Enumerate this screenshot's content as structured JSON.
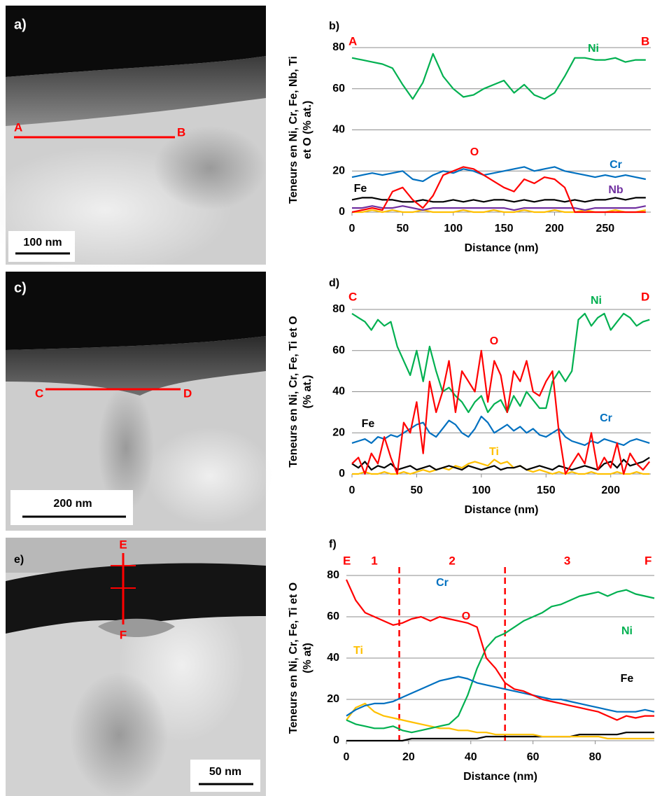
{
  "images": [
    {
      "panel": "a)",
      "start": "A",
      "end": "B",
      "scale_bar": "100 nm"
    },
    {
      "panel": "c)",
      "start": "C",
      "end": "D",
      "scale_bar": "200 nm"
    },
    {
      "panel": "e)",
      "start": "E",
      "end": "F",
      "scale_bar": "50 nm"
    }
  ],
  "chart_data": [
    {
      "type": "line",
      "panel": "b)",
      "corner_labels": [
        "A",
        "B"
      ],
      "ylabel": [
        "Teneurs en Ni, Cr, Fe, Nb, Ti",
        "et O (% at.)"
      ],
      "xlabel": "Distance (nm)",
      "xlim": [
        0,
        295
      ],
      "xticks": [
        0,
        50,
        100,
        150,
        200,
        250
      ],
      "ylim": [
        0,
        80
      ],
      "yticks": [
        0,
        20,
        40,
        60,
        80
      ],
      "grid": true,
      "x": [
        0,
        10,
        20,
        30,
        40,
        50,
        60,
        70,
        80,
        90,
        100,
        110,
        120,
        130,
        140,
        150,
        160,
        170,
        180,
        190,
        200,
        210,
        220,
        230,
        240,
        250,
        260,
        270,
        280,
        290
      ],
      "series": [
        {
          "color": "#ffc000",
          "values": [
            0,
            0,
            1,
            0,
            1,
            0,
            0,
            1,
            0,
            0,
            0,
            1,
            0,
            0,
            1,
            0,
            0,
            1,
            0,
            0,
            1,
            0,
            0,
            1,
            0,
            0,
            1,
            0,
            0,
            1
          ]
        },
        {
          "name": "Nb",
          "color": "#7030a0",
          "values": [
            2,
            2,
            3,
            2,
            2,
            3,
            2,
            1,
            2,
            2,
            2,
            2,
            2,
            2,
            2,
            2,
            1,
            2,
            2,
            2,
            2,
            2,
            2,
            1,
            2,
            2,
            2,
            2,
            2,
            3
          ]
        },
        {
          "name": "Fe",
          "color": "#000000",
          "values": [
            6,
            7,
            7,
            6,
            6,
            5,
            5,
            6,
            5,
            5,
            6,
            5,
            6,
            5,
            6,
            6,
            5,
            6,
            5,
            6,
            6,
            5,
            6,
            5,
            6,
            6,
            7,
            6,
            7,
            7
          ]
        },
        {
          "name": "Cr",
          "color": "#0070c0",
          "values": [
            17,
            18,
            19,
            18,
            19,
            20,
            16,
            15,
            18,
            20,
            19,
            21,
            20,
            18,
            19,
            20,
            21,
            22,
            20,
            21,
            22,
            20,
            19,
            18,
            17,
            18,
            17,
            18,
            17,
            16
          ]
        },
        {
          "name": "Ni",
          "color": "#00b050",
          "values": [
            75,
            74,
            73,
            72,
            70,
            62,
            55,
            63,
            77,
            66,
            60,
            56,
            57,
            60,
            62,
            64,
            58,
            62,
            57,
            55,
            58,
            66,
            75,
            75,
            74,
            74,
            75,
            73,
            74,
            74
          ]
        },
        {
          "name": "O",
          "color": "#ff0000",
          "values": [
            0,
            1,
            2,
            1,
            10,
            12,
            6,
            2,
            8,
            18,
            20,
            22,
            21,
            18,
            15,
            12,
            10,
            16,
            14,
            17,
            16,
            12,
            0,
            0,
            0,
            0,
            0,
            0,
            0,
            0
          ]
        }
      ]
    },
    {
      "type": "line",
      "panel": "d)",
      "corner_labels": [
        "C",
        "D"
      ],
      "ylabel": [
        "Teneurs en Ni, Cr, Fe, Ti et O",
        "(% at.)"
      ],
      "xlabel": "Distance (nm)",
      "xlim": [
        0,
        231
      ],
      "xticks": [
        0,
        50,
        100,
        150,
        200
      ],
      "ylim": [
        0,
        80
      ],
      "yticks": [
        0,
        20,
        40,
        60,
        80
      ],
      "grid": true,
      "x": [
        0,
        5,
        10,
        15,
        20,
        25,
        30,
        35,
        40,
        45,
        50,
        55,
        60,
        65,
        70,
        75,
        80,
        85,
        90,
        95,
        100,
        105,
        110,
        115,
        120,
        125,
        130,
        135,
        140,
        145,
        150,
        155,
        160,
        165,
        170,
        175,
        180,
        185,
        190,
        195,
        200,
        205,
        210,
        215,
        220,
        225,
        230
      ],
      "series": [
        {
          "name": "Ti",
          "color": "#ffc000",
          "values": [
            0,
            0,
            1,
            0,
            0,
            1,
            0,
            0,
            1,
            0,
            1,
            2,
            1,
            2,
            3,
            2,
            4,
            3,
            5,
            6,
            5,
            4,
            7,
            5,
            6,
            3,
            4,
            2,
            1,
            2,
            1,
            0,
            1,
            0,
            1,
            0,
            0,
            1,
            0,
            0,
            0,
            1,
            0,
            0,
            1,
            0,
            0
          ]
        },
        {
          "name": "Fe",
          "color": "#000000",
          "values": [
            5,
            3,
            6,
            2,
            4,
            3,
            5,
            2,
            3,
            4,
            2,
            3,
            4,
            2,
            3,
            4,
            3,
            2,
            4,
            3,
            2,
            3,
            4,
            2,
            3,
            3,
            4,
            2,
            3,
            4,
            3,
            2,
            4,
            3,
            2,
            3,
            4,
            3,
            2,
            5,
            6,
            3,
            7,
            4,
            5,
            6,
            8
          ]
        },
        {
          "name": "Cr",
          "color": "#0070c0",
          "values": [
            15,
            16,
            17,
            15,
            18,
            17,
            19,
            18,
            20,
            22,
            24,
            25,
            20,
            18,
            22,
            26,
            24,
            20,
            18,
            22,
            28,
            25,
            20,
            22,
            24,
            21,
            23,
            20,
            22,
            19,
            18,
            20,
            22,
            18,
            16,
            15,
            14,
            16,
            15,
            17,
            16,
            15,
            14,
            16,
            17,
            16,
            15
          ]
        },
        {
          "name": "Ni",
          "color": "#00b050",
          "values": [
            78,
            76,
            74,
            70,
            75,
            72,
            74,
            62,
            55,
            48,
            60,
            45,
            62,
            50,
            40,
            42,
            38,
            35,
            30,
            35,
            38,
            30,
            34,
            36,
            30,
            38,
            33,
            40,
            36,
            32,
            32,
            45,
            50,
            45,
            50,
            75,
            78,
            72,
            76,
            78,
            70,
            74,
            78,
            76,
            72,
            74,
            75
          ]
        },
        {
          "name": "O",
          "color": "#ff0000",
          "values": [
            5,
            8,
            0,
            10,
            5,
            18,
            8,
            0,
            25,
            20,
            35,
            10,
            45,
            30,
            40,
            55,
            30,
            50,
            45,
            40,
            60,
            35,
            55,
            48,
            30,
            50,
            45,
            55,
            40,
            38,
            45,
            50,
            20,
            0,
            5,
            10,
            5,
            20,
            2,
            8,
            3,
            15,
            0,
            10,
            5,
            2,
            6
          ]
        }
      ]
    },
    {
      "type": "line",
      "panel": "f)",
      "corner_labels": [
        "E",
        "F"
      ],
      "zones": [
        {
          "label": "1",
          "x": 9
        },
        {
          "label": "2",
          "x": 34
        },
        {
          "label": "3",
          "x": 71
        }
      ],
      "vlines": [
        17,
        51
      ],
      "ylabel": [
        "Teneurs en Ni, Cr, Fe, Ti et O",
        "(% at)"
      ],
      "xlabel": "Distance (nm)",
      "xlim": [
        0,
        99
      ],
      "xticks": [
        0,
        20,
        40,
        60,
        80
      ],
      "ylim": [
        0,
        80
      ],
      "yticks": [
        0,
        20,
        40,
        60,
        80
      ],
      "grid": true,
      "x": [
        0,
        3,
        6,
        9,
        12,
        15,
        18,
        21,
        24,
        27,
        30,
        33,
        36,
        39,
        42,
        45,
        48,
        51,
        54,
        57,
        60,
        63,
        66,
        69,
        72,
        75,
        78,
        81,
        84,
        87,
        90,
        93,
        96,
        99
      ],
      "series": [
        {
          "name": "Fe",
          "color": "#000000",
          "values": [
            0,
            0,
            0,
            0,
            0,
            0,
            0,
            1,
            1,
            1,
            1,
            1,
            1,
            1,
            1,
            2,
            2,
            2,
            2,
            2,
            2,
            2,
            2,
            2,
            2,
            3,
            3,
            3,
            3,
            3,
            4,
            4,
            4,
            4
          ]
        },
        {
          "name": "Ti",
          "color": "#ffc000",
          "values": [
            10,
            16,
            18,
            14,
            12,
            11,
            10,
            9,
            8,
            7,
            6,
            6,
            5,
            5,
            4,
            4,
            3,
            3,
            3,
            3,
            3,
            2,
            2,
            2,
            2,
            2,
            2,
            2,
            1,
            1,
            1,
            1,
            1,
            1
          ]
        },
        {
          "name": "Ni",
          "color": "#00b050",
          "values": [
            10,
            8,
            7,
            6,
            6,
            7,
            5,
            4,
            5,
            6,
            7,
            8,
            12,
            22,
            35,
            45,
            50,
            52,
            55,
            58,
            60,
            62,
            65,
            66,
            68,
            70,
            71,
            72,
            70,
            72,
            73,
            71,
            70,
            69
          ]
        },
        {
          "name": "Cr",
          "color": "#0070c0",
          "values": [
            12,
            15,
            17,
            18,
            18,
            19,
            21,
            23,
            25,
            27,
            29,
            30,
            31,
            30,
            28,
            27,
            26,
            25,
            24,
            23,
            22,
            21,
            20,
            20,
            19,
            18,
            17,
            16,
            15,
            14,
            14,
            14,
            15,
            14
          ]
        },
        {
          "name": "O",
          "color": "#ff0000",
          "values": [
            78,
            68,
            62,
            60,
            58,
            56,
            57,
            59,
            60,
            58,
            60,
            59,
            58,
            57,
            55,
            40,
            35,
            28,
            25,
            24,
            22,
            20,
            19,
            18,
            17,
            16,
            15,
            14,
            12,
            10,
            12,
            11,
            12,
            12
          ]
        }
      ]
    }
  ]
}
